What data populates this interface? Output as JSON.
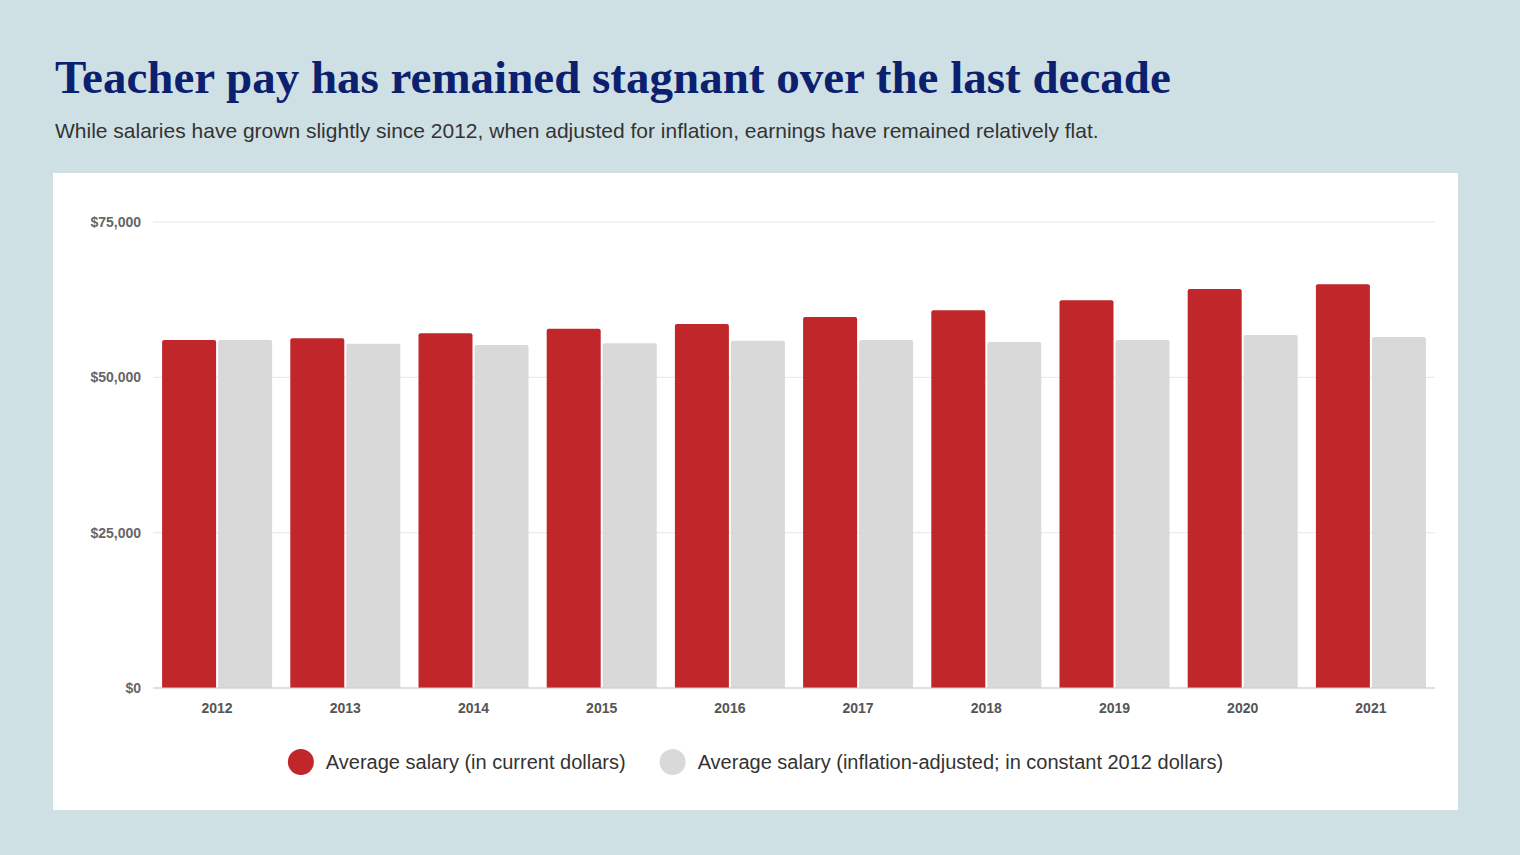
{
  "chart_data": {
    "type": "bar",
    "title": "Teacher pay has remained stagnant over the last decade",
    "subtitle": "While salaries have grown slightly since 2012, when adjusted for inflation, earnings have remained relatively flat.",
    "categories": [
      "2012",
      "2013",
      "2014",
      "2015",
      "2016",
      "2017",
      "2018",
      "2019",
      "2020",
      "2021"
    ],
    "series": [
      {
        "name": "Average salary (in current dollars)",
        "color": "#c1262b",
        "values": [
          56000,
          56300,
          57100,
          57800,
          58600,
          59700,
          60800,
          62400,
          64200,
          65000
        ]
      },
      {
        "name": "Average salary (inflation-adjusted; in constant 2012 dollars)",
        "color": "#d9d9d9",
        "values": [
          56000,
          55400,
          55200,
          55500,
          55900,
          56000,
          55700,
          56000,
          56800,
          56500
        ]
      }
    ],
    "ylim": [
      0,
      75000
    ],
    "yticks": [
      {
        "value": 0,
        "label": "$0"
      },
      {
        "value": 25000,
        "label": "$25,000"
      },
      {
        "value": 50000,
        "label": "$50,000"
      },
      {
        "value": 75000,
        "label": "$75,000"
      }
    ],
    "grid": true,
    "legend": "bottom"
  }
}
